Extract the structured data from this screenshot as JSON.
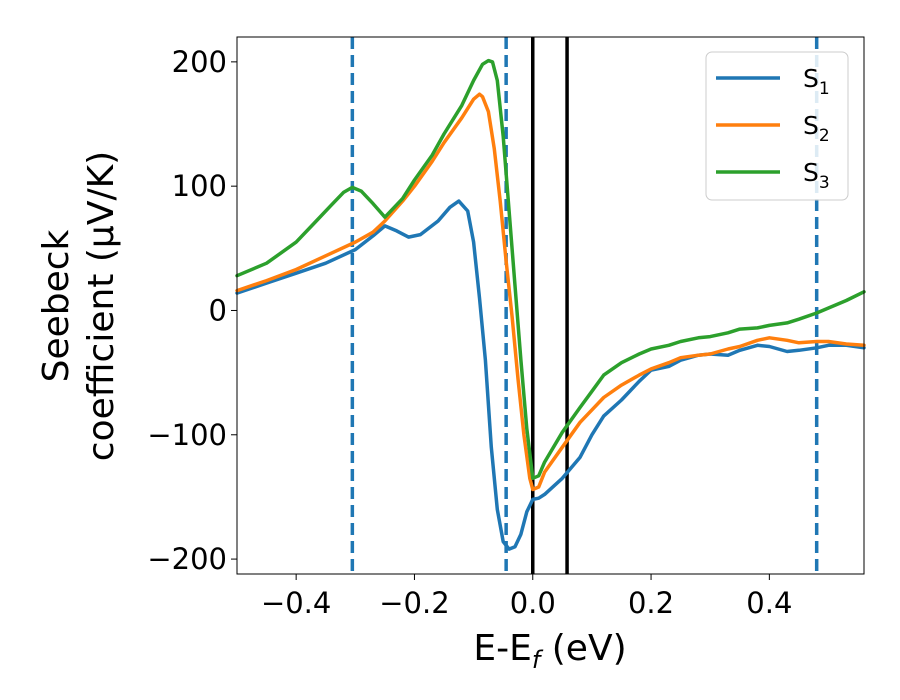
{
  "chart_data": {
    "type": "line",
    "xlabel_main": "E-E",
    "xlabel_sub": "f",
    "xlabel_unit": " (eV)",
    "ylabel_line1": "Seebeck",
    "ylabel_line2": "coefficient  (μV/K)",
    "xlim": [
      -0.5,
      0.56
    ],
    "ylim": [
      -212,
      220
    ],
    "xticks": [
      -0.4,
      -0.2,
      0.0,
      0.2,
      0.4
    ],
    "xtick_labels": [
      "−0.4",
      "−0.2",
      "0.0",
      "0.2",
      "0.4"
    ],
    "yticks": [
      -200,
      -100,
      0,
      100,
      200
    ],
    "ytick_labels": [
      "−200",
      "−100",
      "0",
      "100",
      "200"
    ],
    "grid": false,
    "legend_position": "top-right",
    "vlines_dashed": [
      -0.305,
      -0.045,
      0.48
    ],
    "vlines_solid": [
      0.0,
      0.058
    ],
    "series": [
      {
        "name": "S",
        "subscript": "1",
        "color": "#1f77b4",
        "x": [
          -0.5,
          -0.45,
          -0.4,
          -0.35,
          -0.3,
          -0.27,
          -0.25,
          -0.23,
          -0.21,
          -0.19,
          -0.16,
          -0.14,
          -0.125,
          -0.11,
          -0.1,
          -0.09,
          -0.08,
          -0.07,
          -0.06,
          -0.05,
          -0.04,
          -0.03,
          -0.02,
          -0.01,
          0.0,
          0.01,
          0.02,
          0.05,
          0.08,
          0.1,
          0.12,
          0.15,
          0.18,
          0.2,
          0.23,
          0.25,
          0.28,
          0.3,
          0.33,
          0.35,
          0.38,
          0.4,
          0.43,
          0.45,
          0.48,
          0.5,
          0.53,
          0.56
        ],
        "values": [
          14,
          22,
          30,
          38,
          49,
          60,
          68,
          64,
          59,
          61,
          72,
          83,
          88,
          80,
          55,
          10,
          -40,
          -110,
          -160,
          -186,
          -192,
          -190,
          -180,
          -162,
          -152,
          -151,
          -148,
          -135,
          -118,
          -100,
          -85,
          -72,
          -57,
          -48,
          -45,
          -40,
          -36,
          -35,
          -36,
          -32,
          -28,
          -29,
          -33,
          -32,
          -30,
          -28,
          -28,
          -30
        ]
      },
      {
        "name": "S",
        "subscript": "2",
        "color": "#ff7f0e",
        "x": [
          -0.5,
          -0.45,
          -0.4,
          -0.35,
          -0.3,
          -0.27,
          -0.25,
          -0.22,
          -0.2,
          -0.17,
          -0.15,
          -0.12,
          -0.1,
          -0.09,
          -0.085,
          -0.075,
          -0.065,
          -0.055,
          -0.045,
          -0.035,
          -0.025,
          -0.015,
          -0.005,
          0.0,
          0.01,
          0.02,
          0.05,
          0.08,
          0.1,
          0.12,
          0.15,
          0.18,
          0.2,
          0.23,
          0.25,
          0.28,
          0.3,
          0.33,
          0.35,
          0.38,
          0.4,
          0.43,
          0.45,
          0.48,
          0.5,
          0.53,
          0.56
        ],
        "values": [
          16,
          24,
          33,
          44,
          55,
          63,
          72,
          88,
          100,
          120,
          135,
          155,
          170,
          174,
          172,
          160,
          130,
          88,
          40,
          -5,
          -55,
          -100,
          -135,
          -144,
          -142,
          -130,
          -110,
          -90,
          -80,
          -70,
          -60,
          -52,
          -47,
          -42,
          -38,
          -36,
          -35,
          -31,
          -29,
          -24,
          -22,
          -24,
          -26,
          -25,
          -25,
          -27,
          -28
        ]
      },
      {
        "name": "S",
        "subscript": "3",
        "color": "#2ca02c",
        "x": [
          -0.5,
          -0.45,
          -0.4,
          -0.37,
          -0.34,
          -0.32,
          -0.305,
          -0.29,
          -0.27,
          -0.25,
          -0.22,
          -0.2,
          -0.17,
          -0.15,
          -0.12,
          -0.1,
          -0.085,
          -0.075,
          -0.068,
          -0.06,
          -0.05,
          -0.04,
          -0.03,
          -0.02,
          -0.01,
          0.0,
          0.01,
          0.02,
          0.05,
          0.08,
          0.1,
          0.12,
          0.15,
          0.18,
          0.2,
          0.23,
          0.25,
          0.28,
          0.3,
          0.33,
          0.35,
          0.38,
          0.4,
          0.43,
          0.45,
          0.48,
          0.5,
          0.53,
          0.56
        ],
        "values": [
          28,
          38,
          55,
          70,
          85,
          95,
          99,
          96,
          86,
          75,
          90,
          105,
          125,
          142,
          165,
          185,
          198,
          201,
          200,
          185,
          140,
          80,
          20,
          -40,
          -95,
          -135,
          -133,
          -122,
          -98,
          -78,
          -65,
          -52,
          -42,
          -35,
          -31,
          -28,
          -25,
          -22,
          -21,
          -18,
          -15,
          -14,
          -12,
          -10,
          -7,
          -2,
          2,
          8,
          15
        ]
      }
    ]
  }
}
